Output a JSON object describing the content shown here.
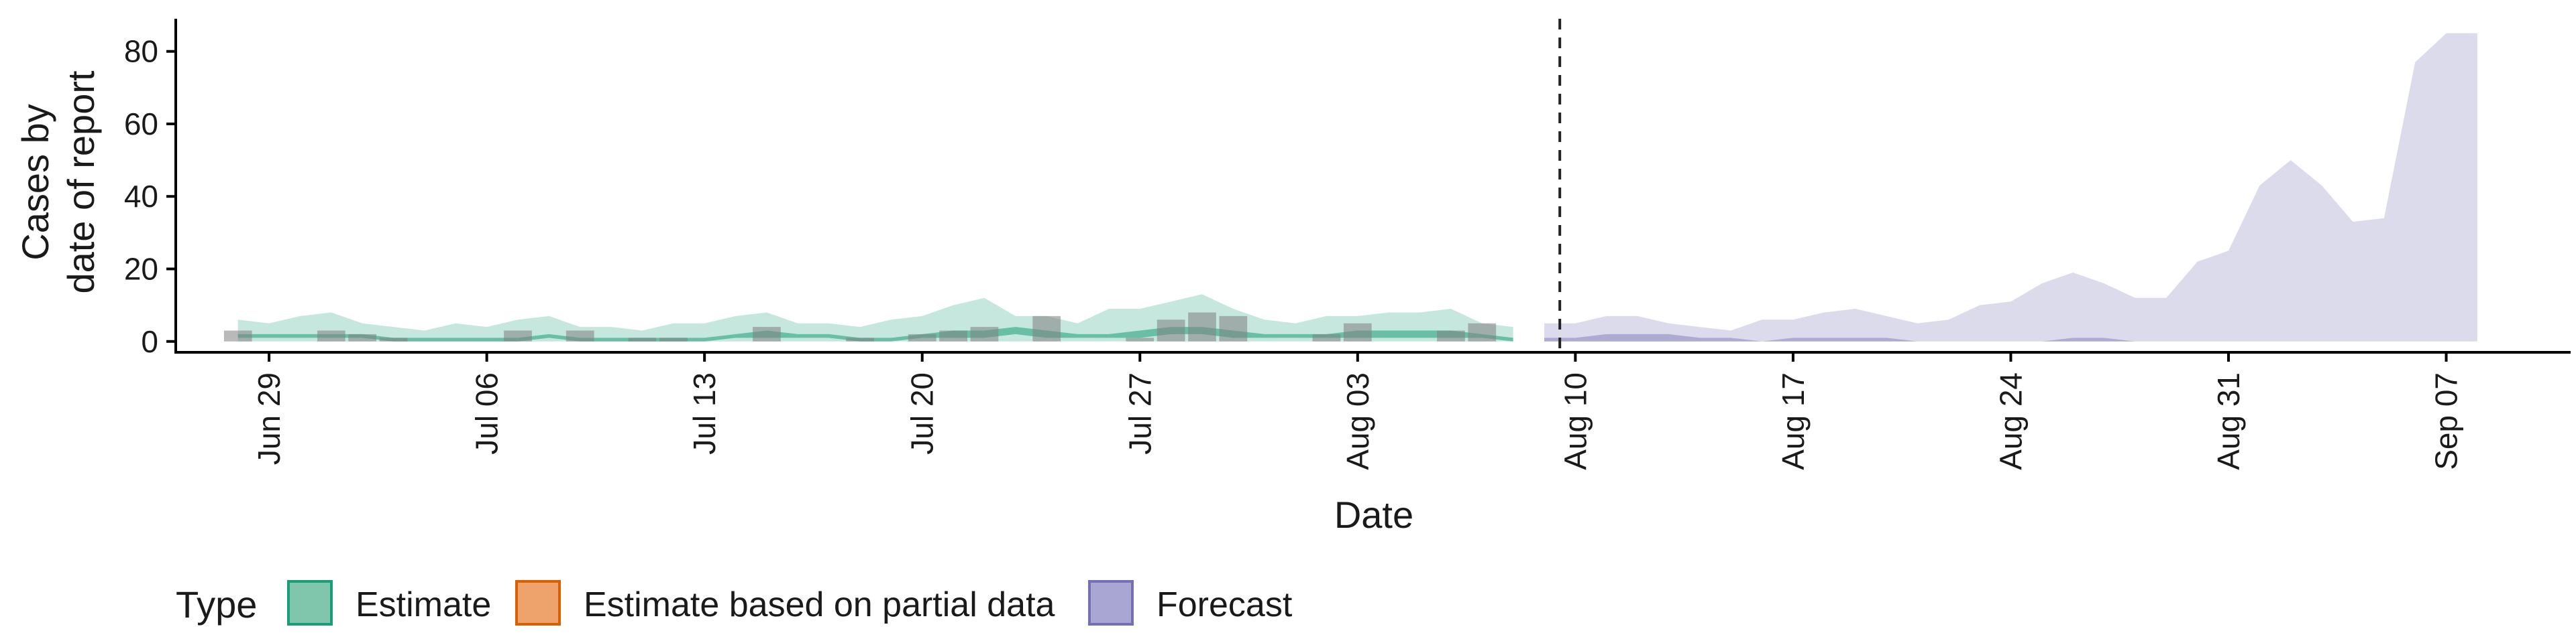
{
  "chart_data": {
    "type": "area",
    "xlabel": "Date",
    "ylabel_lines": [
      "Cases by",
      "date of report"
    ],
    "ylim": [
      -3,
      89
    ],
    "yticks": [
      0,
      20,
      40,
      60,
      80
    ],
    "xlim": [
      "2021-06-26",
      "2021-09-11"
    ],
    "xticks": [
      "2021-06-29",
      "2021-07-06",
      "2021-07-13",
      "2021-07-20",
      "2021-07-27",
      "2021-08-03",
      "2021-08-10",
      "2021-08-17",
      "2021-08-24",
      "2021-08-31",
      "2021-09-07"
    ],
    "xtick_labels": [
      "Jun 29",
      "Jul 06",
      "Jul 13",
      "Jul 20",
      "Jul 27",
      "Aug 03",
      "Aug 10",
      "Aug 17",
      "Aug 24",
      "Aug 31",
      "Sep 07"
    ],
    "vline_date": "2021-08-09",
    "grid": false,
    "legend": {
      "title": "Type",
      "position": "bottom-left",
      "entries": [
        {
          "label": "Estimate",
          "fill": "#7fc6ad",
          "stroke": "#1b9e77"
        },
        {
          "label": "Estimate based on partial data",
          "fill": "#eea36c",
          "stroke": "#d95f02"
        },
        {
          "label": "Forecast",
          "fill": "#aaa6d3",
          "stroke": "#7570b3"
        }
      ]
    },
    "colors": {
      "estimate_outer": "#1b9e77",
      "estimate_inner": "#1b9e77",
      "forecast_outer": "#7570b3",
      "observed_bar": "#7f7f7f"
    },
    "observed_cases": {
      "x": [
        "2021-06-28",
        "2021-06-29",
        "2021-06-30",
        "2021-07-01",
        "2021-07-02",
        "2021-07-03",
        "2021-07-04",
        "2021-07-05",
        "2021-07-06",
        "2021-07-07",
        "2021-07-08",
        "2021-07-09",
        "2021-07-10",
        "2021-07-11",
        "2021-07-12",
        "2021-07-13",
        "2021-07-14",
        "2021-07-15",
        "2021-07-16",
        "2021-07-17",
        "2021-07-18",
        "2021-07-19",
        "2021-07-20",
        "2021-07-21",
        "2021-07-22",
        "2021-07-23",
        "2021-07-24",
        "2021-07-25",
        "2021-07-26",
        "2021-07-27",
        "2021-07-28",
        "2021-07-29",
        "2021-07-30",
        "2021-07-31",
        "2021-08-01",
        "2021-08-02",
        "2021-08-03",
        "2021-08-04",
        "2021-08-05",
        "2021-08-06",
        "2021-08-07",
        "2021-08-08"
      ],
      "y": [
        3,
        0,
        0,
        3,
        2,
        1,
        0,
        0,
        0,
        3,
        0,
        3,
        0,
        1,
        1,
        0,
        0,
        4,
        0,
        0,
        1,
        0,
        2,
        3,
        4,
        0,
        7,
        0,
        0,
        1,
        6,
        8,
        7,
        0,
        0,
        2,
        5,
        0,
        0,
        3,
        5,
        0
      ]
    },
    "estimate_outer": {
      "x": [
        "2021-06-28",
        "2021-06-29",
        "2021-06-30",
        "2021-07-01",
        "2021-07-02",
        "2021-07-03",
        "2021-07-04",
        "2021-07-05",
        "2021-07-06",
        "2021-07-07",
        "2021-07-08",
        "2021-07-09",
        "2021-07-10",
        "2021-07-11",
        "2021-07-12",
        "2021-07-13",
        "2021-07-14",
        "2021-07-15",
        "2021-07-16",
        "2021-07-17",
        "2021-07-18",
        "2021-07-19",
        "2021-07-20",
        "2021-07-21",
        "2021-07-22",
        "2021-07-23",
        "2021-07-24",
        "2021-07-25",
        "2021-07-26",
        "2021-07-27",
        "2021-07-28",
        "2021-07-29",
        "2021-07-30",
        "2021-07-31",
        "2021-08-01",
        "2021-08-02",
        "2021-08-03",
        "2021-08-04",
        "2021-08-05",
        "2021-08-06",
        "2021-08-07",
        "2021-08-08"
      ],
      "upper": [
        6,
        5,
        7,
        8,
        5,
        4,
        3,
        5,
        4,
        6,
        7,
        4,
        4,
        3,
        5,
        5,
        7,
        8,
        5,
        5,
        4,
        6,
        7,
        10,
        12,
        7,
        7,
        5,
        9,
        9,
        11,
        13,
        9,
        6,
        5,
        7,
        7,
        8,
        8,
        9,
        5,
        4
      ],
      "lower": [
        0,
        0,
        0,
        0,
        0,
        0,
        0,
        0,
        0,
        0,
        0,
        0,
        0,
        0,
        0,
        0,
        0,
        0,
        0,
        0,
        0,
        0,
        0,
        0,
        0,
        0,
        0,
        0,
        0,
        0,
        0,
        0,
        0,
        0,
        0,
        0,
        0,
        0,
        0,
        0,
        0,
        0
      ]
    },
    "estimate_inner": {
      "x": [
        "2021-06-28",
        "2021-06-29",
        "2021-06-30",
        "2021-07-01",
        "2021-07-02",
        "2021-07-03",
        "2021-07-04",
        "2021-07-05",
        "2021-07-06",
        "2021-07-07",
        "2021-07-08",
        "2021-07-09",
        "2021-07-10",
        "2021-07-11",
        "2021-07-12",
        "2021-07-13",
        "2021-07-14",
        "2021-07-15",
        "2021-07-16",
        "2021-07-17",
        "2021-07-18",
        "2021-07-19",
        "2021-07-20",
        "2021-07-21",
        "2021-07-22",
        "2021-07-23",
        "2021-07-24",
        "2021-07-25",
        "2021-07-26",
        "2021-07-27",
        "2021-07-28",
        "2021-07-29",
        "2021-07-30",
        "2021-07-31",
        "2021-08-01",
        "2021-08-02",
        "2021-08-03",
        "2021-08-04",
        "2021-08-05",
        "2021-08-06",
        "2021-08-07",
        "2021-08-08"
      ],
      "upper": [
        2,
        2,
        2,
        2,
        2,
        1,
        1,
        1,
        1,
        1,
        2,
        1,
        1,
        1,
        1,
        1,
        2,
        3,
        2,
        2,
        1,
        1,
        2,
        3,
        3,
        4,
        3,
        2,
        2,
        3,
        4,
        4,
        3,
        2,
        2,
        2,
        3,
        3,
        3,
        3,
        2,
        1
      ],
      "lower": [
        1,
        1,
        1,
        1,
        1,
        0,
        0,
        0,
        0,
        0,
        1,
        0,
        0,
        0,
        0,
        0,
        1,
        1,
        1,
        1,
        0,
        0,
        1,
        1,
        1,
        2,
        1,
        1,
        1,
        1,
        2,
        2,
        1,
        1,
        1,
        1,
        1,
        1,
        1,
        1,
        1,
        0
      ]
    },
    "forecast_outer": {
      "x": [
        "2021-08-09",
        "2021-08-10",
        "2021-08-11",
        "2021-08-12",
        "2021-08-13",
        "2021-08-14",
        "2021-08-15",
        "2021-08-16",
        "2021-08-17",
        "2021-08-18",
        "2021-08-19",
        "2021-08-20",
        "2021-08-21",
        "2021-08-22",
        "2021-08-23",
        "2021-08-24",
        "2021-08-25",
        "2021-08-26",
        "2021-08-27",
        "2021-08-28",
        "2021-08-29",
        "2021-08-30",
        "2021-08-31",
        "2021-09-01",
        "2021-09-02",
        "2021-09-03",
        "2021-09-04",
        "2021-09-05",
        "2021-09-06",
        "2021-09-07",
        "2021-09-08"
      ],
      "upper": [
        5,
        5,
        7,
        7,
        5,
        4,
        3,
        6,
        6,
        8,
        9,
        7,
        5,
        6,
        10,
        11,
        16,
        19,
        16,
        12,
        12,
        22,
        25,
        43,
        50,
        43,
        33,
        34,
        77,
        85,
        85
      ],
      "lower": [
        0,
        0,
        0,
        0,
        0,
        0,
        0,
        0,
        0,
        0,
        0,
        0,
        0,
        0,
        0,
        0,
        0,
        0,
        0,
        0,
        0,
        0,
        0,
        0,
        0,
        0,
        0,
        0,
        0,
        0,
        0
      ]
    },
    "forecast_inner": {
      "x": [
        "2021-08-09",
        "2021-08-10",
        "2021-08-11",
        "2021-08-12",
        "2021-08-13",
        "2021-08-14",
        "2021-08-15",
        "2021-08-16",
        "2021-08-17",
        "2021-08-18",
        "2021-08-19",
        "2021-08-20",
        "2021-08-21",
        "2021-08-22",
        "2021-08-23",
        "2021-08-24",
        "2021-08-25",
        "2021-08-26",
        "2021-08-27",
        "2021-08-28"
      ],
      "upper": [
        1,
        1,
        2,
        2,
        2,
        1,
        1,
        0,
        1,
        1,
        1,
        1,
        0,
        0,
        0,
        0,
        0,
        1,
        1,
        0
      ],
      "lower": [
        0,
        0,
        0,
        0,
        0,
        0,
        0,
        0,
        0,
        0,
        0,
        0,
        0,
        0,
        0,
        0,
        0,
        0,
        0,
        0
      ]
    }
  }
}
